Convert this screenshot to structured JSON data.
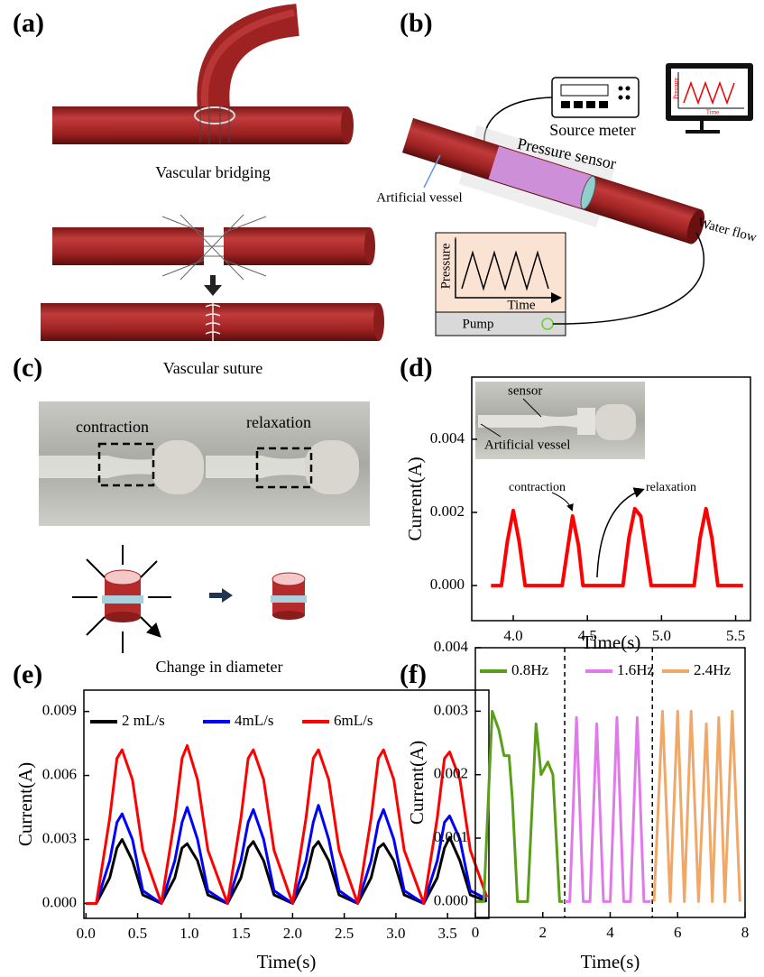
{
  "panels": {
    "labels": [
      "(a)",
      "(b)",
      "(c)",
      "(d)",
      "(e)",
      "(f)"
    ],
    "a": {
      "bridging": "Vascular bridging",
      "suture": "Vascular suture"
    },
    "b": {
      "source_meter": "Source meter",
      "pressure_sensor": "Pressure sensor",
      "artificial_vessel": "Artificial vessel",
      "water_flow": "Water flow",
      "pressure": "Pressure",
      "time": "Time",
      "pump": "Pump",
      "screen_pressure": "Pressure",
      "screen_time": "Time"
    },
    "c": {
      "contraction": "contraction",
      "relaxation": "relaxation",
      "change": "Change in diameter"
    }
  },
  "chart_data": [
    {
      "type": "line",
      "xlabel": "Time(s)",
      "ylabel": "Current(A)",
      "inset_labels": [
        "sensor",
        "Artificial vessel"
      ],
      "annotations": [
        "contraction",
        "relaxation"
      ],
      "x": [
        3.85,
        3.92,
        3.96,
        4.0,
        4.04,
        4.08,
        4.33,
        4.37,
        4.4,
        4.44,
        4.47,
        4.74,
        4.78,
        4.82,
        4.86,
        4.93,
        5.22,
        5.26,
        5.3,
        5.34,
        5.38,
        5.55
      ],
      "values": [
        0,
        0,
        0.0012,
        0.00205,
        0.0012,
        0,
        0,
        0.0011,
        0.0019,
        0.0011,
        0,
        0,
        0.0013,
        0.0021,
        0.0019,
        0,
        0,
        0.0013,
        0.0021,
        0.0013,
        0,
        0
      ],
      "color": "#ff0000",
      "xlim": [
        3.72,
        5.6
      ],
      "ylim": [
        -0.00096,
        0.0057
      ],
      "xticks": [
        {
          "value": 4,
          "label": "4.0"
        },
        4.5,
        {
          "value": 5,
          "label": "5.0"
        },
        5.5
      ],
      "yticks": [
        {
          "value": 0,
          "label": "0.000"
        },
        {
          "value": 0.002,
          "label": "0.002"
        },
        {
          "value": 0.004,
          "label": "0.004"
        }
      ]
    },
    {
      "type": "line",
      "xlabel": "Time(s)",
      "ylabel": "Current(A)",
      "x": [
        0,
        0.1,
        0.23,
        0.3,
        0.35,
        0.45,
        0.55,
        0.73,
        0.86,
        0.93,
        0.98,
        1.08,
        1.18,
        1.37,
        1.5,
        1.57,
        1.62,
        1.72,
        1.82,
        2.0,
        2.13,
        2.2,
        2.25,
        2.35,
        2.45,
        2.63,
        2.76,
        2.83,
        2.88,
        2.98,
        3.08,
        3.27,
        3.4,
        3.47,
        3.52,
        3.62,
        3.72,
        3.88
      ],
      "series": [
        {
          "name": "2 mL/s",
          "color": "#000000",
          "values": [
            0,
            0,
            0.0012,
            0.0026,
            0.003,
            0.002,
            0.0004,
            0,
            0.0012,
            0.0026,
            0.0028,
            0.002,
            0.0004,
            0,
            0.0012,
            0.0026,
            0.0029,
            0.002,
            0.0004,
            0,
            0.0012,
            0.0026,
            0.0029,
            0.002,
            0.0004,
            0,
            0.0012,
            0.0026,
            0.0028,
            0.002,
            0.0004,
            0,
            0.0012,
            0.0026,
            0.0031,
            0.002,
            0.0004,
            0.0001
          ]
        },
        {
          "name": "4mL/s",
          "color": "#0000ff",
          "values": [
            0,
            0,
            0.002,
            0.0038,
            0.0042,
            0.003,
            0.0006,
            0,
            0.002,
            0.0038,
            0.0045,
            0.003,
            0.0006,
            0,
            0.002,
            0.0038,
            0.0044,
            0.003,
            0.0006,
            0,
            0.002,
            0.0038,
            0.0046,
            0.003,
            0.0006,
            0,
            0.002,
            0.0038,
            0.0044,
            0.003,
            0.0006,
            0,
            0.002,
            0.0038,
            0.0041,
            0.003,
            0.0006,
            0.0002
          ]
        },
        {
          "name": "6mL/s",
          "color": "#ff0000",
          "values": [
            0,
            0,
            0.004,
            0.0068,
            0.0072,
            0.0058,
            0.0025,
            0,
            0.004,
            0.0068,
            0.0074,
            0.0058,
            0.0025,
            0,
            0.004,
            0.0068,
            0.0072,
            0.0058,
            0.0025,
            0,
            0.004,
            0.0068,
            0.0072,
            0.0058,
            0.0025,
            0,
            0.004,
            0.0068,
            0.0072,
            0.0058,
            0.0025,
            0,
            0.004,
            0.0068,
            0.0071,
            0.0058,
            0.0025,
            0.0003
          ]
        }
      ],
      "xlim": [
        -0.02,
        3.9
      ],
      "ylim": [
        -0.0007,
        0.01
      ],
      "xticks": [
        {
          "value": 0,
          "label": "0.0"
        },
        0.5,
        {
          "value": 1,
          "label": "1.0"
        },
        1.5,
        {
          "value": 2,
          "label": "2.0"
        },
        2.5,
        {
          "value": 3,
          "label": "3.0"
        },
        3.5
      ],
      "yticks": [
        {
          "value": 0,
          "label": "0.000"
        },
        {
          "value": 0.003,
          "label": "0.003"
        },
        {
          "value": 0.006,
          "label": "0.006"
        },
        {
          "value": 0.009,
          "label": "0.009"
        }
      ]
    },
    {
      "type": "line",
      "xlabel": "Time(s)",
      "ylabel": "Current(A)",
      "vlines": [
        2.65,
        5.25
      ],
      "series": [
        {
          "name": "0.8Hz",
          "color": "#5a9e1a",
          "x": [
            0,
            0.25,
            0.5,
            0.7,
            0.85,
            1.0,
            1.1,
            1.25,
            1.55,
            1.8,
            1.95,
            2.15,
            2.3,
            2.5,
            2.6
          ],
          "values": [
            0,
            0,
            0.003,
            0.0027,
            0.0023,
            0.0023,
            0.0016,
            0,
            0,
            0.0028,
            0.002,
            0.0022,
            0.002,
            0,
            0
          ]
        },
        {
          "name": "1.6Hz",
          "color": "#e07ae8",
          "x": [
            2.65,
            2.8,
            3.0,
            3.2,
            3.4,
            3.6,
            3.8,
            4.0,
            4.2,
            4.4,
            4.6,
            4.8,
            5.0,
            5.2
          ],
          "values": [
            0,
            0,
            0.0029,
            0,
            0,
            0.0028,
            0,
            0,
            0.0029,
            0,
            0,
            0.0029,
            0,
            0
          ]
        },
        {
          "name": "2.4Hz",
          "color": "#f0a868",
          "x": [
            5.3,
            5.55,
            5.78,
            6.0,
            6.2,
            6.4,
            6.62,
            6.85,
            7.03,
            7.22,
            7.4,
            7.62,
            7.85
          ],
          "values": [
            0,
            0.003,
            0,
            0.003,
            0,
            0.003,
            0,
            0.0028,
            0,
            0.0029,
            0,
            0.003,
            0
          ]
        }
      ],
      "xlim": [
        0,
        8
      ],
      "ylim": [
        -0.00025,
        0.004
      ],
      "xticks": [
        0,
        2,
        4,
        6,
        8
      ],
      "yticks": [
        {
          "value": 0,
          "label": "0.000"
        },
        {
          "value": 0.001,
          "label": "0.001"
        },
        {
          "value": 0.002,
          "label": "0.002"
        },
        {
          "value": 0.003,
          "label": "0.003"
        },
        {
          "value": 0.004,
          "label": "0.004"
        }
      ]
    }
  ]
}
